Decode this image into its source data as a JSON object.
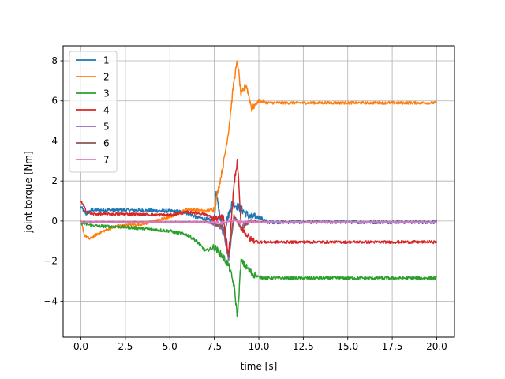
{
  "chart_data": {
    "type": "line",
    "xlabel": "time [s]",
    "ylabel": "joint torque [Nm]",
    "xlim": [
      -1.0,
      21.0
    ],
    "ylim": [
      -5.8,
      8.75
    ],
    "xticks": [
      0.0,
      2.5,
      5.0,
      7.5,
      10.0,
      12.5,
      15.0,
      17.5,
      20.0
    ],
    "xtick_labels": [
      "0.0",
      "2.5",
      "5.0",
      "7.5",
      "10.0",
      "12.5",
      "15.0",
      "17.5",
      "20.0"
    ],
    "yticks": [
      -4,
      -2,
      0,
      2,
      4,
      6,
      8
    ],
    "ytick_labels": [
      "−4",
      "−2",
      "0",
      "2",
      "4",
      "6",
      "8"
    ],
    "grid": true,
    "legend_position": "upper-left",
    "series": [
      {
        "name": "1",
        "color": "#1f77b4",
        "noise": 0.09,
        "x": [
          0,
          0.3,
          0.6,
          2.5,
          5.0,
          5.8,
          6.5,
          7.0,
          7.5,
          7.6,
          8.0,
          8.5,
          9.0,
          9.5,
          10.0,
          10.5,
          11.0,
          20.0
        ],
        "y": [
          0.7,
          0.35,
          0.55,
          0.55,
          0.5,
          0.45,
          0.2,
          0.1,
          0.0,
          1.3,
          -0.6,
          0.9,
          0.6,
          0.2,
          0.2,
          -0.05,
          -0.05,
          -0.05
        ]
      },
      {
        "name": "2",
        "color": "#ff7f0e",
        "noise": 0.07,
        "x": [
          0,
          0.2,
          0.5,
          1.0,
          2.0,
          3.5,
          5.0,
          6.0,
          7.0,
          7.5,
          8.0,
          8.3,
          8.6,
          8.8,
          9.0,
          9.3,
          9.6,
          10.0,
          10.5,
          11.0,
          20.0
        ],
        "y": [
          0.0,
          -0.7,
          -0.9,
          -0.6,
          -0.25,
          -0.15,
          0.2,
          0.6,
          0.5,
          0.6,
          2.8,
          4.5,
          7.0,
          8.0,
          6.3,
          6.8,
          5.6,
          6.0,
          5.9,
          5.9,
          5.9
        ]
      },
      {
        "name": "3",
        "color": "#2ca02c",
        "noise": 0.08,
        "x": [
          0,
          0.5,
          1.0,
          2.5,
          5.0,
          6.0,
          6.5,
          7.0,
          7.5,
          8.0,
          8.3,
          8.6,
          8.8,
          9.0,
          9.3,
          9.6,
          10.0,
          10.5,
          20.0
        ],
        "y": [
          -0.1,
          -0.2,
          -0.25,
          -0.3,
          -0.5,
          -0.7,
          -1.0,
          -1.5,
          -1.3,
          -1.8,
          -2.2,
          -3.2,
          -4.8,
          -2.0,
          -2.3,
          -2.6,
          -2.8,
          -2.85,
          -2.85
        ]
      },
      {
        "name": "4",
        "color": "#d62728",
        "noise": 0.07,
        "x": [
          0,
          0.3,
          0.6,
          2.5,
          5.0,
          6.0,
          7.0,
          7.5,
          8.0,
          8.3,
          8.6,
          8.8,
          9.0,
          9.5,
          10.0,
          10.5,
          20.0
        ],
        "y": [
          1.0,
          0.5,
          0.35,
          0.35,
          0.3,
          0.45,
          0.35,
          0.1,
          0.2,
          -1.8,
          1.8,
          3.0,
          -0.3,
          -0.9,
          -1.05,
          -1.05,
          -1.05
        ]
      },
      {
        "name": "5",
        "color": "#9467bd",
        "noise": 0.04,
        "x": [
          0,
          5.0,
          7.0,
          7.5,
          8.0,
          8.3,
          8.6,
          9.0,
          9.5,
          10.0,
          20.0
        ],
        "y": [
          -0.05,
          -0.05,
          -0.05,
          -0.15,
          -0.4,
          -2.0,
          0.2,
          -0.3,
          0.0,
          -0.05,
          -0.05
        ]
      },
      {
        "name": "6",
        "color": "#8c564b",
        "noise": 0.04,
        "x": [
          0,
          5.0,
          7.0,
          7.5,
          8.0,
          8.3,
          8.6,
          9.0,
          9.5,
          10.0,
          20.0
        ],
        "y": [
          -0.05,
          -0.05,
          -0.05,
          -0.1,
          -0.3,
          -1.8,
          0.3,
          -0.4,
          0.0,
          -0.05,
          -0.05
        ]
      },
      {
        "name": "7",
        "color": "#e377c2",
        "noise": 0.03,
        "x": [
          0,
          5.0,
          7.0,
          8.0,
          8.5,
          9.0,
          10.0,
          20.0
        ],
        "y": [
          -0.05,
          -0.05,
          -0.05,
          -0.1,
          0.05,
          -0.05,
          -0.05,
          -0.05
        ]
      }
    ]
  }
}
